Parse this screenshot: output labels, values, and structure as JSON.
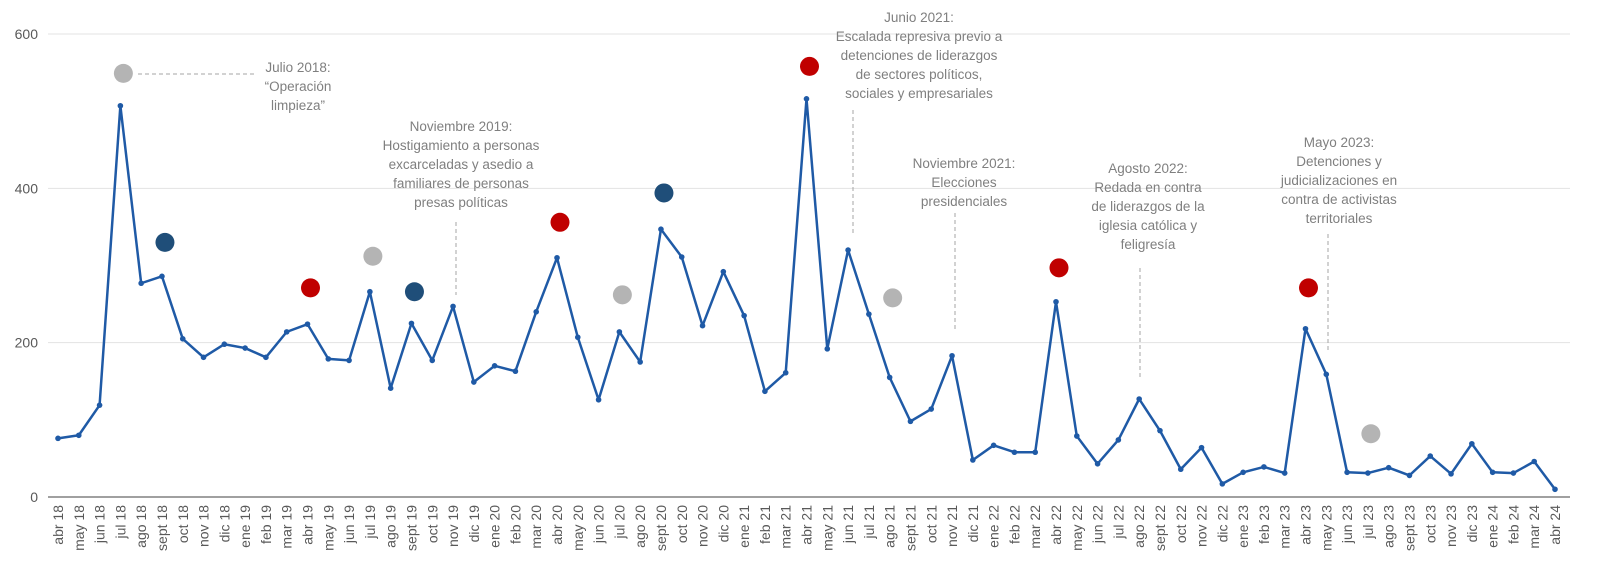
{
  "chart_data": {
    "type": "line",
    "categories": [
      "abr 18",
      "may 18",
      "jun 18",
      "jul 18",
      "ago 18",
      "sept 18",
      "oct 18",
      "nov 18",
      "dic 18",
      "ene 19",
      "feb 19",
      "mar 19",
      "abr 19",
      "may 19",
      "jun 19",
      "jul 19",
      "ago 19",
      "sept 19",
      "oct 19",
      "nov 19",
      "dic 19",
      "ene 20",
      "feb 20",
      "mar 20",
      "abr 20",
      "may 20",
      "jun 20",
      "jul 20",
      "ago 20",
      "sept 20",
      "oct 20",
      "nov 20",
      "dic 20",
      "ene 21",
      "feb 21",
      "mar 21",
      "abr 21",
      "may 21",
      "jun 21",
      "jul 21",
      "ago 21",
      "sept 21",
      "oct 21",
      "nov 21",
      "dic 21",
      "ene 22",
      "feb 22",
      "mar 22",
      "abr 22",
      "may 22",
      "jun 22",
      "jul 22",
      "ago 22",
      "sept 22",
      "oct 22",
      "nov 22",
      "dic 22",
      "ene 23",
      "feb 23",
      "mar 23",
      "abr 23",
      "may 23",
      "jun 23",
      "jul 23",
      "ago 23",
      "sept 23",
      "oct 23",
      "nov 23",
      "dic 23",
      "ene 24",
      "feb 24",
      "mar 24",
      "abr 24"
    ],
    "series": [
      {
        "color": "#1f5aa6",
        "values": [
          76,
          80,
          119,
          507,
          277,
          286,
          205,
          181,
          198,
          193,
          181,
          214,
          224,
          179,
          177,
          266,
          141,
          225,
          177,
          247,
          149,
          170,
          163,
          240,
          310,
          207,
          126,
          214,
          175,
          347,
          311,
          222,
          292,
          235,
          137,
          161,
          516,
          192,
          320,
          237,
          155,
          98,
          114,
          183,
          48,
          67,
          58,
          58,
          253,
          79,
          43,
          74,
          127,
          86,
          36,
          64,
          17,
          32,
          39,
          31,
          218,
          159,
          32,
          31,
          38,
          28,
          53,
          30,
          69,
          32,
          31,
          46,
          10
        ]
      }
    ],
    "events": [
      {
        "category": "jul 18",
        "value": 549,
        "color": "#b4b4b4"
      },
      {
        "category": "sept 18",
        "value": 330,
        "color": "#1f4e79"
      },
      {
        "category": "abr 19",
        "value": 271,
        "color": "#c00000"
      },
      {
        "category": "jul 19",
        "value": 312,
        "color": "#b4b4b4"
      },
      {
        "category": "sept 19",
        "value": 266,
        "color": "#1f4e79"
      },
      {
        "category": "abr 20",
        "value": 356,
        "color": "#c00000"
      },
      {
        "category": "jul 20",
        "value": 262,
        "color": "#b4b4b4"
      },
      {
        "category": "sept 20",
        "value": 394,
        "color": "#1f4e79"
      },
      {
        "category": "abr 21",
        "value": 558,
        "color": "#c00000"
      },
      {
        "category": "ago 21",
        "value": 258,
        "color": "#b4b4b4"
      },
      {
        "category": "abr 22",
        "value": 297,
        "color": "#c00000"
      },
      {
        "category": "abr 23",
        "value": 271,
        "color": "#c00000"
      },
      {
        "category": "jul 23",
        "value": 82,
        "color": "#b4b4b4"
      }
    ],
    "annotations": [
      [
        "Julio 2018:",
        "“Operación",
        "limpieza”"
      ],
      [
        "Noviembre 2019:",
        "Hostigamiento a personas",
        "excarceladas y asedio a",
        "familiares de personas",
        "presas políticas"
      ],
      [
        "Junio 2021:",
        "Escalada represiva previo a",
        "detenciones de liderazgos",
        "de sectores políticos,",
        "sociales y empresariales"
      ],
      [
        "Noviembre 2021:",
        "Elecciones",
        "presidenciales"
      ],
      [
        "Agosto 2022:",
        "Redada en contra",
        "de liderazgos de la",
        "iglesia católica y",
        "feligresía"
      ],
      [
        "Mayo 2023:",
        "Detenciones y",
        "judicializaciones en",
        "contra de activistas",
        "territoriales"
      ]
    ],
    "ylim": [
      0,
      600
    ],
    "yticks": [
      0,
      200,
      400,
      600
    ],
    "grid": true
  }
}
